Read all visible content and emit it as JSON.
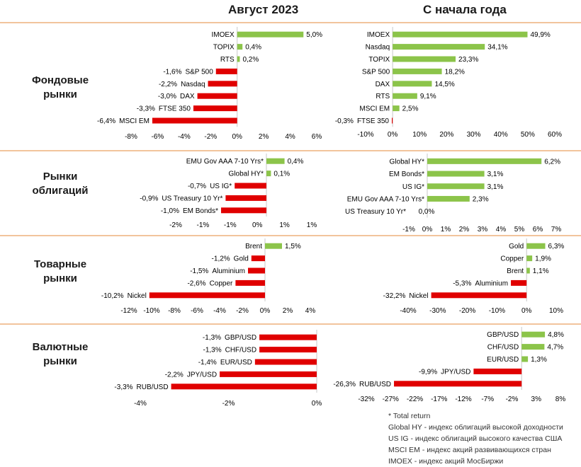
{
  "header": {
    "left_title": "Август 2023",
    "right_title": "С начала года"
  },
  "sections": [
    {
      "label_line1": "Фондовые",
      "label_line2": "рынки"
    },
    {
      "label_line1": "Рынки",
      "label_line2": "облигаций"
    },
    {
      "label_line1": "Товарные",
      "label_line2": "рынки"
    },
    {
      "label_line1": "Валютные",
      "label_line2": "рынки"
    }
  ],
  "colors": {
    "positive": "#8cc44a",
    "negative": "#e00000",
    "separator": "#f2c49c"
  },
  "chart_data": [
    {
      "type": "bar",
      "orientation": "horizontal",
      "section": "Фондовые рынки",
      "period": "Август 2023",
      "categories": [
        "IMOEX",
        "TOPIX",
        "RTS",
        "S&P 500",
        "Nasdaq",
        "DAX",
        "FTSE 350",
        "MSCI EM"
      ],
      "values": [
        5.0,
        0.4,
        0.2,
        -1.6,
        -2.2,
        -3.0,
        -3.3,
        -6.4
      ],
      "labels": [
        "5,0%",
        "0,4%",
        "0,2%",
        "-1,6%",
        "-2,2%",
        "-3,0%",
        "-3,3%",
        "-6,4%"
      ],
      "xlim": [
        -8,
        6
      ],
      "ticks": [
        "-8%",
        "-6%",
        "-4%",
        "-2%",
        "0%",
        "2%",
        "4%",
        "6%"
      ]
    },
    {
      "type": "bar",
      "orientation": "horizontal",
      "section": "Фондовые рынки",
      "period": "С начала года",
      "categories": [
        "IMOEX",
        "Nasdaq",
        "TOPIX",
        "S&P 500",
        "DAX",
        "RTS",
        "MSCI EM",
        "FTSE 350"
      ],
      "values": [
        49.9,
        34.1,
        23.3,
        18.2,
        14.5,
        9.1,
        2.5,
        -0.3
      ],
      "labels": [
        "49,9%",
        "34,1%",
        "23,3%",
        "18,2%",
        "14,5%",
        "9,1%",
        "2,5%",
        "-0,3%"
      ],
      "xlim": [
        -10,
        60
      ],
      "ticks": [
        "-10%",
        "0%",
        "10%",
        "20%",
        "30%",
        "40%",
        "50%",
        "60%"
      ]
    },
    {
      "type": "bar",
      "orientation": "horizontal",
      "section": "Рынки облигаций",
      "period": "Август 2023",
      "categories": [
        "EMU Gov AAA 7-10 Yrs*",
        "Global HY*",
        "US IG*",
        "US Treasury 10 Yr*",
        "EM Bonds*"
      ],
      "values": [
        0.4,
        0.1,
        -0.7,
        -0.9,
        -1.0
      ],
      "labels": [
        "0,4%",
        "0,1%",
        "-0,7%",
        "-0,9%",
        "-1,0%"
      ],
      "xlim": [
        -2,
        1
      ],
      "ticks": [
        "-2%",
        "-1%",
        "-1%",
        "0%",
        "1%",
        "1%"
      ]
    },
    {
      "type": "bar",
      "orientation": "horizontal",
      "section": "Рынки облигаций",
      "period": "С начала года",
      "categories": [
        "Global HY*",
        "EM Bonds*",
        "US IG*",
        "EMU Gov AAA 7-10 Yrs*",
        "US Treasury 10 Yr*"
      ],
      "values": [
        6.2,
        3.1,
        3.1,
        2.3,
        0.0
      ],
      "labels": [
        "6,2%",
        "3,1%",
        "3,1%",
        "2,3%",
        "0,0%"
      ],
      "xlim": [
        -1,
        7
      ],
      "ticks": [
        "-1%",
        "0%",
        "1%",
        "2%",
        "3%",
        "4%",
        "5%",
        "6%",
        "7%"
      ]
    },
    {
      "type": "bar",
      "orientation": "horizontal",
      "section": "Товарные рынки",
      "period": "Август 2023",
      "categories": [
        "Brent",
        "Gold",
        "Aluminium",
        "Copper",
        "Nickel"
      ],
      "values": [
        1.5,
        -1.2,
        -1.5,
        -2.6,
        -10.2
      ],
      "labels": [
        "1,5%",
        "-1,2%",
        "-1,5%",
        "-2,6%",
        "-10,2%"
      ],
      "xlim": [
        -12,
        4
      ],
      "ticks": [
        "-12%",
        "-10%",
        "-8%",
        "-6%",
        "-4%",
        "-2%",
        "0%",
        "2%",
        "4%"
      ]
    },
    {
      "type": "bar",
      "orientation": "horizontal",
      "section": "Товарные рынки",
      "period": "С начала года",
      "categories": [
        "Gold",
        "Copper",
        "Brent",
        "Aluminium",
        "Nickel"
      ],
      "values": [
        6.3,
        1.9,
        1.1,
        -5.3,
        -32.2
      ],
      "labels": [
        "6,3%",
        "1,9%",
        "1,1%",
        "-5,3%",
        "-32,2%"
      ],
      "xlim": [
        -40,
        10
      ],
      "ticks": [
        "-40%",
        "-30%",
        "-20%",
        "-10%",
        "0%",
        "10%"
      ]
    },
    {
      "type": "bar",
      "orientation": "horizontal",
      "section": "Валютные рынки",
      "period": "Август 2023",
      "categories": [
        "GBP/USD",
        "CHF/USD",
        "EUR/USD",
        "JPY/USD",
        "RUB/USD"
      ],
      "values": [
        -1.3,
        -1.3,
        -1.4,
        -2.2,
        -3.3
      ],
      "labels": [
        "-1,3%",
        "-1,3%",
        "-1,4%",
        "-2,2%",
        "-3,3%"
      ],
      "xlim": [
        -4,
        0
      ],
      "ticks": [
        "-4%",
        "-2%",
        "0%"
      ]
    },
    {
      "type": "bar",
      "orientation": "horizontal",
      "section": "Валютные рынки",
      "period": "С начала года",
      "categories": [
        "GBP/USD",
        "CHF/USD",
        "EUR/USD",
        "JPY/USD",
        "RUB/USD"
      ],
      "values": [
        4.8,
        4.7,
        1.3,
        -9.9,
        -26.3
      ],
      "labels": [
        "4,8%",
        "4,7%",
        "1,3%",
        "-9,9%",
        "-26,3%"
      ],
      "xlim": [
        -32,
        8
      ],
      "ticks": [
        "-32%",
        "-27%",
        "-22%",
        "-17%",
        "-12%",
        "-7%",
        "-2%",
        "3%",
        "8%"
      ]
    }
  ],
  "notes": [
    "* Total return",
    "Global HY - индекс облигаций высокой доходности",
    "US IG - индекс облигаций высокого качества США",
    "MSCI EM - индекс акций развивающихся стран",
    "IMOEX - индекс акций МосБиржи"
  ]
}
